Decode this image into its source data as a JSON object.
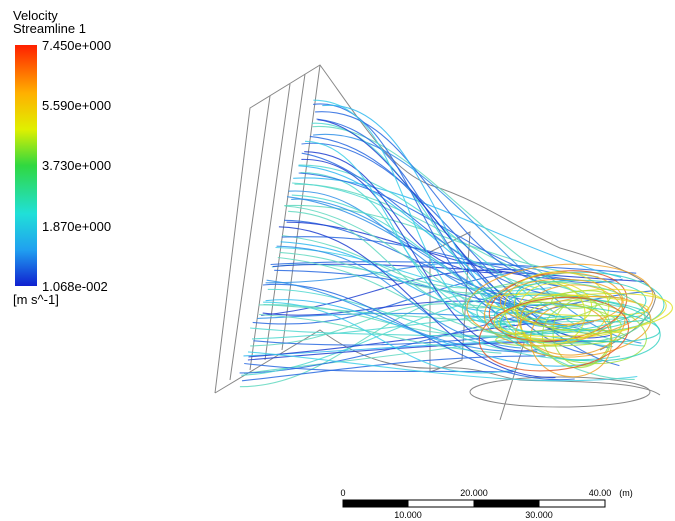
{
  "legend": {
    "title": "Velocity",
    "subtitle": "Streamline 1",
    "labels": [
      "7.450e+000",
      "5.590e+000",
      "3.730e+000",
      "1.870e+000",
      "1.068e-002"
    ],
    "unit": "[m s^-1]"
  },
  "scale_bar": {
    "top_labels": [
      "0",
      "20.000",
      "40.00"
    ],
    "unit": "(m)",
    "bottom_labels": [
      "10.000",
      "30.000"
    ]
  }
}
